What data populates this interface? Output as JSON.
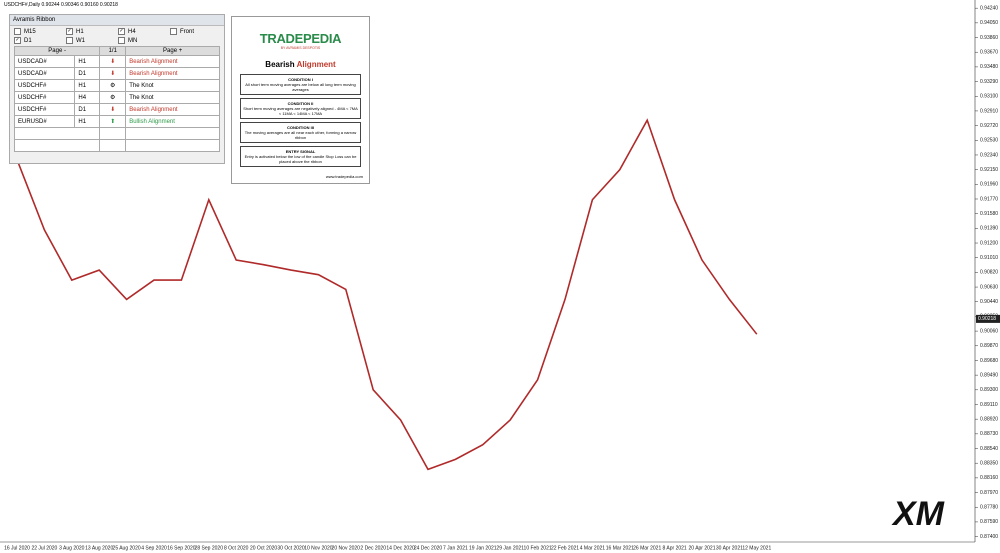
{
  "header": {
    "title": "USDCHF#,Daily  0.90244 0.90346 0.90160 0.90218"
  },
  "panel": {
    "title": "Avramis Ribbon",
    "timeframes": [
      {
        "label": "M15",
        "checked": false
      },
      {
        "label": "H1",
        "checked": true
      },
      {
        "label": "H4",
        "checked": true
      },
      {
        "label": "Front",
        "checked": false
      },
      {
        "label": "D1",
        "checked": true
      },
      {
        "label": "W1",
        "checked": false
      },
      {
        "label": "MN",
        "checked": false
      }
    ],
    "nav": [
      "Page -",
      "1/1",
      "Page +"
    ],
    "rows": [
      [
        "USDCAD#",
        "H1",
        "Bearish Alignment"
      ],
      [
        "USDCAD#",
        "D1",
        "Bearish Alignment"
      ],
      [
        "USDCHF#",
        "H1",
        "The Knot"
      ],
      [
        "USDCHF#",
        "H4",
        "The Knot"
      ],
      [
        "USDCHF#",
        "D1",
        "Bearish Alignment"
      ],
      [
        "EURUSD#",
        "H1",
        "Bullish Alignment"
      ]
    ]
  },
  "infographic": {
    "brand": "TRADEPEDIA",
    "byline": "BY AVRAMIS DESPOTIS",
    "heading": [
      "Bearish ",
      "Alignment"
    ],
    "conditions": [
      {
        "title": "CONDITION I",
        "text": "All short term moving averages are below all long term moving averages"
      },
      {
        "title": "CONDITION II",
        "text": "Short term moving averages are negatively aligned - 4MA < 7MA < 11MA < 14MA < 17MA"
      },
      {
        "title": "CONDITION III",
        "text": "The moving averages are all near each other, forming a narrow ribbon"
      },
      {
        "title": "ENTRY SIGNAL",
        "text": "Entry is activated below the low of the candle Stop Loss can be placed above the ribbon"
      }
    ],
    "footer": "www.tradepedia.com"
  },
  "logo": "XM",
  "chart_data": {
    "type": "line",
    "color": "#b02a2a",
    "categories": [
      "16 Jul 2020",
      "22 Jul 2020",
      "3 Aug 2020",
      "13 Aug 2020",
      "25 Aug 2020",
      "4 Sep 2020",
      "16 Sep 2020",
      "28 Sep 2020",
      "8 Oct 2020",
      "20 Oct 2020",
      "30 Oct 2020",
      "10 Nov 2020",
      "20 Nov 2020",
      "2 Dec 2020",
      "14 Dec 2020",
      "24 Dec 2020",
      "7 Jan 2021",
      "19 Jan 2021",
      "29 Jan 2021",
      "10 Feb 2021",
      "22 Feb 2021",
      "4 Mar 2021",
      "16 Mar 2021",
      "26 Mar 2021",
      "8 Apr 2021",
      "20 Apr 2021",
      "30 Apr 2021",
      "12 May 2021"
    ],
    "values": [
      0.9228,
      0.9137,
      0.9072,
      0.9085,
      0.9047,
      0.9072,
      0.9072,
      0.9176,
      0.9098,
      0.9092,
      0.9085,
      0.9079,
      0.906,
      0.893,
      0.8891,
      0.8827,
      0.884,
      0.8859,
      0.8891,
      0.8943,
      0.9047,
      0.9176,
      0.9215,
      0.9279,
      0.9176,
      0.9098,
      0.9047,
      0.9002
    ],
    "current_price": {
      "value": 0.90218,
      "label": "0.90218"
    },
    "ylim": [
      0.8733,
      0.9432
    ],
    "yticks": [
      {
        "value": 0.874,
        "label": "0.87400"
      },
      {
        "value": 0.8759,
        "label": "0.87590"
      },
      {
        "value": 0.8778,
        "label": "0.87780"
      },
      {
        "value": 0.8797,
        "label": "0.87970"
      },
      {
        "value": 0.8816,
        "label": "0.88160"
      },
      {
        "value": 0.8835,
        "label": "0.88350"
      },
      {
        "value": 0.8854,
        "label": "0.88540"
      },
      {
        "value": 0.8873,
        "label": "0.88730"
      },
      {
        "value": 0.8892,
        "label": "0.88920"
      },
      {
        "value": 0.8911,
        "label": "0.89110"
      },
      {
        "value": 0.893,
        "label": "0.89300"
      },
      {
        "value": 0.8949,
        "label": "0.89490"
      },
      {
        "value": 0.8968,
        "label": "0.89680"
      },
      {
        "value": 0.8987,
        "label": "0.89870"
      },
      {
        "value": 0.9006,
        "label": "0.90060"
      },
      {
        "value": 0.9025,
        "label": "0.90250"
      },
      {
        "value": 0.9044,
        "label": "0.90440"
      },
      {
        "value": 0.9063,
        "label": "0.90630"
      },
      {
        "value": 0.9082,
        "label": "0.90820"
      },
      {
        "value": 0.9101,
        "label": "0.91010"
      },
      {
        "value": 0.912,
        "label": "0.91200"
      },
      {
        "value": 0.9139,
        "label": "0.91390"
      },
      {
        "value": 0.9158,
        "label": "0.91580"
      },
      {
        "value": 0.9177,
        "label": "0.91770"
      },
      {
        "value": 0.9196,
        "label": "0.91960"
      },
      {
        "value": 0.9215,
        "label": "0.92150"
      },
      {
        "value": 0.9234,
        "label": "0.92340"
      },
      {
        "value": 0.9253,
        "label": "0.92530"
      },
      {
        "value": 0.9272,
        "label": "0.92720"
      },
      {
        "value": 0.9291,
        "label": "0.92910"
      },
      {
        "value": 0.931,
        "label": "0.93100"
      },
      {
        "value": 0.9329,
        "label": "0.93290"
      },
      {
        "value": 0.9348,
        "label": "0.93480"
      },
      {
        "value": 0.9367,
        "label": "0.93670"
      },
      {
        "value": 0.9386,
        "label": "0.93860"
      },
      {
        "value": 0.9405,
        "label": "0.94050"
      },
      {
        "value": 0.9424,
        "label": "0.94240"
      }
    ]
  }
}
